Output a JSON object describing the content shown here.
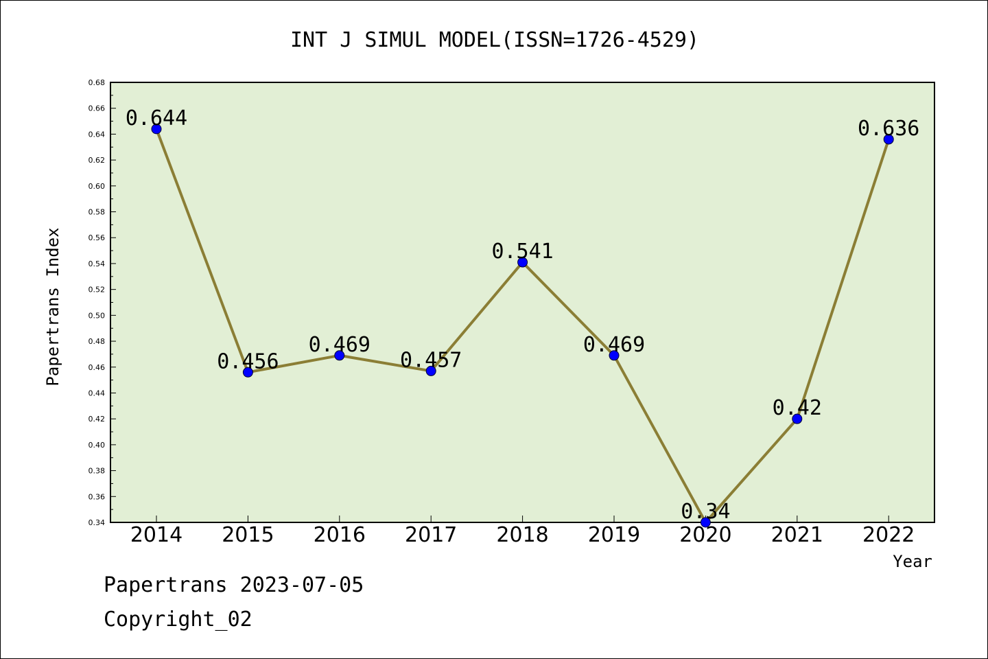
{
  "chart_data": {
    "type": "line",
    "title": "INT J SIMUL MODEL(ISSN=1726-4529)",
    "xlabel": "Year",
    "ylabel": "Papertrans Index",
    "categories": [
      "2014",
      "2015",
      "2016",
      "2017",
      "2018",
      "2019",
      "2020",
      "2021",
      "2022"
    ],
    "values": [
      0.644,
      0.456,
      0.469,
      0.457,
      0.541,
      0.469,
      0.34,
      0.42,
      0.636
    ],
    "data_labels": [
      "0.644",
      "0.456",
      "0.469",
      "0.457",
      "0.541",
      "0.469",
      "0.34",
      "0.42",
      "0.636"
    ],
    "ylim": [
      0.34,
      0.68
    ],
    "yticks": [
      "0.34",
      "0.36",
      "0.38",
      "0.40",
      "0.42",
      "0.44",
      "0.46",
      "0.48",
      "0.50",
      "0.52",
      "0.54",
      "0.56",
      "0.58",
      "0.60",
      "0.62",
      "0.64",
      "0.66",
      "0.68"
    ],
    "grid": false,
    "colors": {
      "plot_background": "#e2efd5",
      "line": "#8b7e35",
      "marker": "#0000ff"
    }
  },
  "footer": {
    "date": "Papertrans 2023-07-05",
    "copyright": "Copyright_02"
  }
}
